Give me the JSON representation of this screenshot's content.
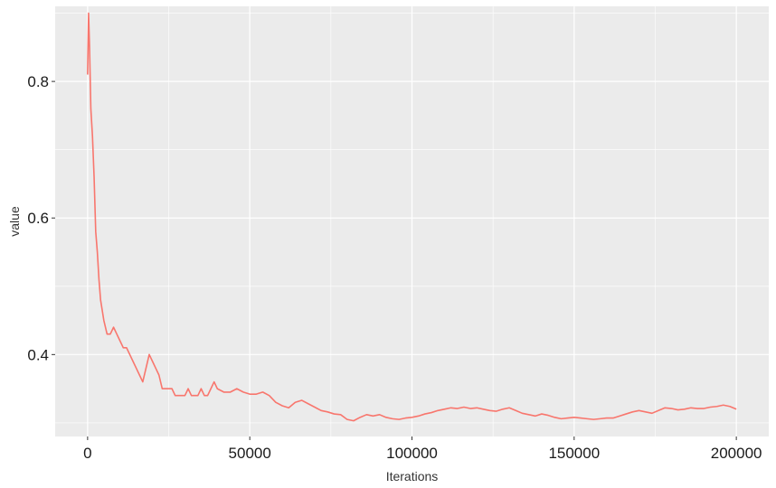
{
  "chart_data": {
    "type": "line",
    "title": "",
    "xlabel": "Iterations",
    "ylabel": "value",
    "xlim": [
      -10000,
      210000
    ],
    "ylim": [
      0.28,
      0.91
    ],
    "x_ticks": [
      0,
      50000,
      100000,
      150000,
      200000
    ],
    "x_tick_labels": [
      "0",
      "50000",
      "100000",
      "150000",
      "200000"
    ],
    "y_ticks": [
      0.4,
      0.6,
      0.8
    ],
    "y_tick_labels": [
      "0.4",
      "0.6",
      "0.8"
    ],
    "grid": true,
    "legend": "none",
    "colors": {
      "panel": "#ebebeb",
      "grid": "#ffffff",
      "line": "#f8766d"
    },
    "series": [
      {
        "x": [
          0,
          300,
          600,
          1000,
          1500,
          2000,
          2500,
          3000,
          3500,
          4000,
          5000,
          6000,
          7000,
          8000,
          9000,
          10000,
          11000,
          12000,
          13000,
          14000,
          15000,
          16000,
          17000,
          18000,
          19000,
          20000,
          21000,
          22000,
          23000,
          24000,
          25000,
          26000,
          27000,
          28000,
          29000,
          30000,
          31000,
          32000,
          33000,
          34000,
          35000,
          36000,
          37000,
          38000,
          39000,
          40000,
          42000,
          44000,
          46000,
          48000,
          50000,
          52000,
          54000,
          56000,
          58000,
          60000,
          62000,
          64000,
          66000,
          68000,
          70000,
          72000,
          74000,
          76000,
          78000,
          80000,
          82000,
          84000,
          86000,
          88000,
          90000,
          92000,
          94000,
          96000,
          98000,
          100000,
          102000,
          104000,
          106000,
          108000,
          110000,
          112000,
          114000,
          116000,
          118000,
          120000,
          122000,
          124000,
          126000,
          128000,
          130000,
          132000,
          134000,
          136000,
          138000,
          140000,
          142000,
          144000,
          146000,
          148000,
          150000,
          152000,
          154000,
          156000,
          158000,
          160000,
          162000,
          164000,
          166000,
          168000,
          170000,
          172000,
          174000,
          176000,
          178000,
          180000,
          182000,
          184000,
          186000,
          188000,
          190000,
          192000,
          194000,
          196000,
          198000,
          200000
        ],
        "values": [
          0.81,
          0.9,
          0.85,
          0.76,
          0.72,
          0.66,
          0.58,
          0.55,
          0.51,
          0.48,
          0.45,
          0.43,
          0.43,
          0.44,
          0.43,
          0.42,
          0.41,
          0.41,
          0.4,
          0.39,
          0.38,
          0.37,
          0.36,
          0.38,
          0.4,
          0.39,
          0.38,
          0.37,
          0.35,
          0.35,
          0.35,
          0.35,
          0.34,
          0.34,
          0.34,
          0.34,
          0.35,
          0.34,
          0.34,
          0.34,
          0.35,
          0.34,
          0.34,
          0.35,
          0.36,
          0.35,
          0.345,
          0.345,
          0.35,
          0.345,
          0.342,
          0.342,
          0.345,
          0.34,
          0.33,
          0.325,
          0.322,
          0.33,
          0.333,
          0.328,
          0.323,
          0.318,
          0.316,
          0.313,
          0.312,
          0.305,
          0.303,
          0.308,
          0.312,
          0.31,
          0.312,
          0.308,
          0.306,
          0.305,
          0.307,
          0.308,
          0.31,
          0.313,
          0.315,
          0.318,
          0.32,
          0.322,
          0.321,
          0.323,
          0.321,
          0.322,
          0.32,
          0.318,
          0.317,
          0.32,
          0.322,
          0.318,
          0.314,
          0.312,
          0.31,
          0.313,
          0.311,
          0.308,
          0.306,
          0.307,
          0.308,
          0.307,
          0.306,
          0.305,
          0.306,
          0.307,
          0.307,
          0.31,
          0.313,
          0.316,
          0.318,
          0.316,
          0.314,
          0.318,
          0.322,
          0.321,
          0.319,
          0.32,
          0.322,
          0.321,
          0.321,
          0.323,
          0.324,
          0.326,
          0.324,
          0.32
        ]
      }
    ]
  }
}
